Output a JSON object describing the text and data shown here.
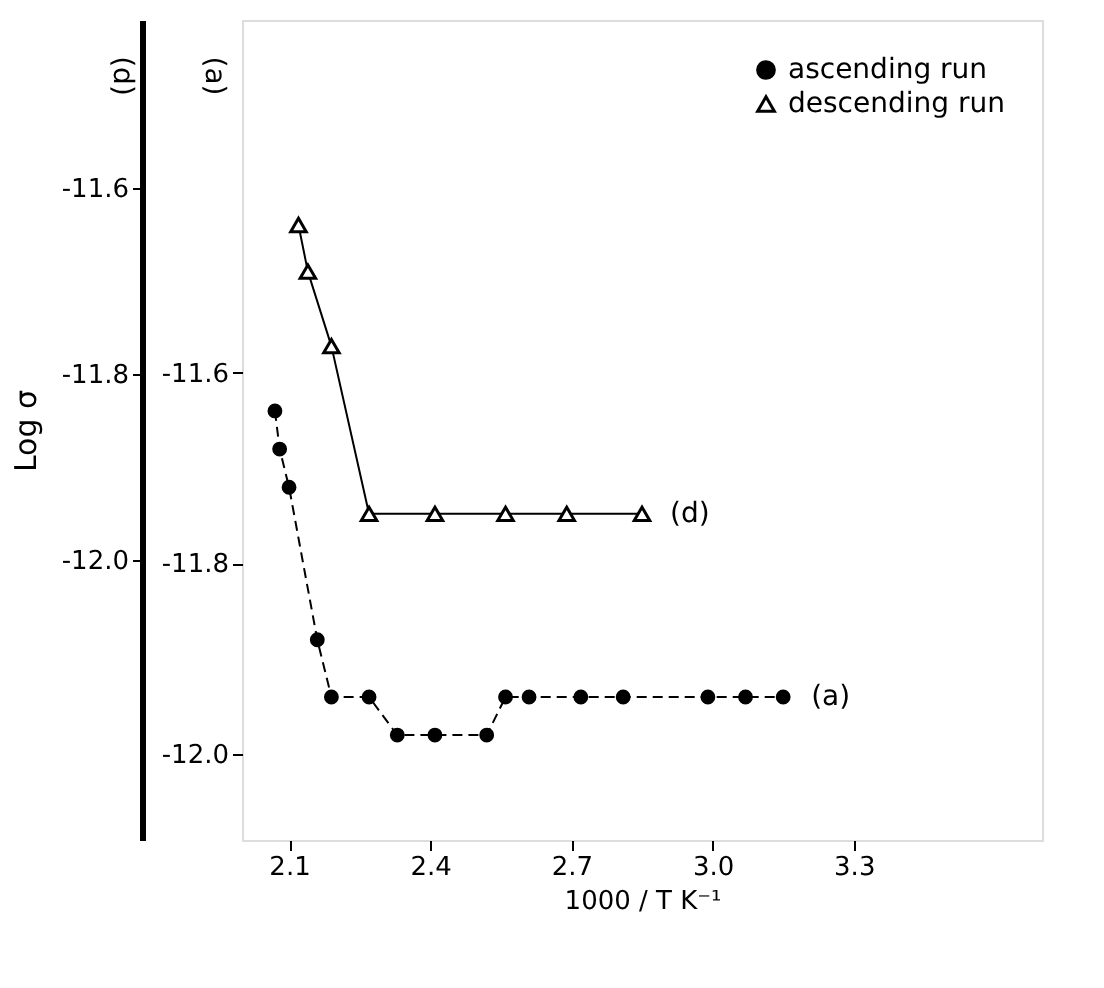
{
  "chart_data": {
    "type": "line",
    "xlabel": "1000 / T   K⁻¹",
    "ylabel": "Log σ",
    "xlim": [
      2.0,
      3.7
    ],
    "xticks": [
      2.1,
      2.4,
      2.7,
      {
        "value": 3.0,
        "label": "3.0"
      },
      3.3
    ],
    "ylim": [
      -12.3,
      -11.42
    ],
    "yticks": [
      -11.6,
      -11.8,
      {
        "value": -12.0,
        "label": "-12.0"
      }
    ],
    "y2lim": [
      -12.09,
      -11.23
    ],
    "y2ticks": [
      -11.6,
      -11.8,
      {
        "value": -12.0,
        "label": "-12.0"
      }
    ],
    "grid": false,
    "legend": "top right",
    "series": [
      {
        "name": "ascending run",
        "color": "#000000",
        "marker": "circle",
        "line_style": "dashed",
        "axis": "y2",
        "x": [
          2.07,
          2.08,
          2.1,
          2.16,
          2.19,
          2.27,
          2.33,
          2.41,
          2.52,
          2.56,
          2.61,
          2.72,
          2.81,
          2.99,
          3.07,
          3.15
        ],
        "values": [
          -11.64,
          -11.68,
          -11.72,
          -11.88,
          -11.94,
          -11.94,
          -11.98,
          -11.98,
          -11.98,
          -11.94,
          -11.94,
          -11.94,
          -11.94,
          -11.94,
          -11.94,
          -11.94
        ]
      },
      {
        "name": "descending run",
        "color": "#000000",
        "marker": "triangle",
        "line_style": "solid",
        "x": [
          2.12,
          2.14,
          2.19,
          2.27,
          2.41,
          2.56,
          2.69,
          2.85
        ],
        "values": [
          -11.64,
          -11.69,
          -11.77,
          -11.95,
          -11.95,
          -11.95,
          -11.95,
          -11.95
        ]
      }
    ],
    "annotations": [
      "(d)",
      "(a)",
      "(d)",
      "(a)"
    ]
  }
}
